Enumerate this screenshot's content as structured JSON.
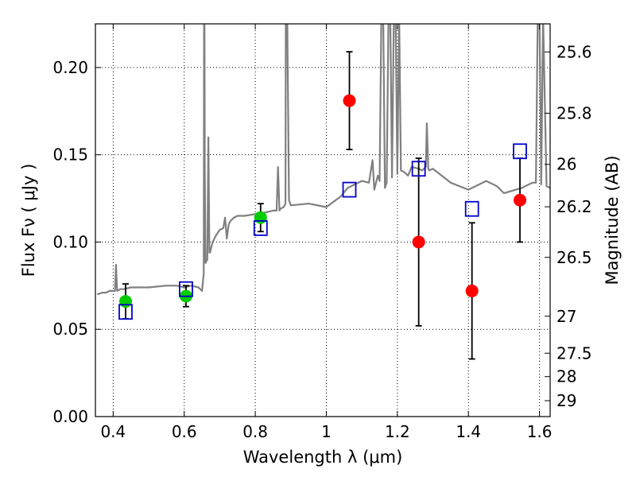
{
  "chart_data": {
    "type": "scatter",
    "xlabel": "Wavelength  λ (μm)",
    "ylabel": "Flux  Fν  ( μJy )",
    "ylabel_right": "Magnitude (AB)",
    "xlim": [
      0.35,
      1.63
    ],
    "ylim": [
      0.0,
      0.225
    ],
    "x_ticks": [
      0.4,
      0.6,
      0.8,
      1.0,
      1.2,
      1.4,
      1.6
    ],
    "x_tick_labels": [
      "0.4",
      "0.6",
      "0.8",
      "1",
      "1.2",
      "1.4",
      "1.6"
    ],
    "y_ticks": [
      0.0,
      0.05,
      0.1,
      0.15,
      0.2
    ],
    "y_tick_labels": [
      "0.00",
      "0.05",
      "0.10",
      "0.15",
      "0.20"
    ],
    "right_ticks": [
      {
        "label": "25.6",
        "flux": 0.2089
      },
      {
        "label": "25.8",
        "flux": 0.1738
      },
      {
        "label": "26",
        "flux": 0.1445
      },
      {
        "label": "26.2",
        "flux": 0.1202
      },
      {
        "label": "26.5",
        "flux": 0.0912
      },
      {
        "label": "27",
        "flux": 0.0575
      },
      {
        "label": "27.5",
        "flux": 0.0363
      },
      {
        "label": "28",
        "flux": 0.0229
      },
      {
        "label": "29",
        "flux": 0.0091
      }
    ],
    "grid": true,
    "series": [
      {
        "kind": "spectrum",
        "color": "#808080",
        "x": [
          0.355,
          0.37,
          0.38,
          0.39,
          0.4,
          0.405,
          0.408,
          0.411,
          0.42,
          0.43,
          0.45,
          0.48,
          0.5,
          0.55,
          0.58,
          0.6,
          0.62,
          0.64,
          0.65,
          0.655,
          0.656,
          0.6565,
          0.657,
          0.658,
          0.66,
          0.665,
          0.668,
          0.671,
          0.673,
          0.675,
          0.68,
          0.69,
          0.7,
          0.71,
          0.715,
          0.72,
          0.725,
          0.73,
          0.74,
          0.75,
          0.77,
          0.8,
          0.83,
          0.85,
          0.86,
          0.864,
          0.868,
          0.87,
          0.88,
          0.885,
          0.886,
          0.888,
          0.89,
          0.895,
          0.9,
          0.95,
          1.0,
          1.02,
          1.04,
          1.06,
          1.08,
          1.1,
          1.12,
          1.13,
          1.135,
          1.14,
          1.145,
          1.15,
          1.155,
          1.16,
          1.165,
          1.17,
          1.175,
          1.18,
          1.185,
          1.19,
          1.195,
          1.2,
          1.205,
          1.21,
          1.22,
          1.23,
          1.24,
          1.26,
          1.27,
          1.28,
          1.283,
          1.287,
          1.29,
          1.3,
          1.35,
          1.4,
          1.45,
          1.48,
          1.5,
          1.55,
          1.58,
          1.59,
          1.595,
          1.6,
          1.605,
          1.61,
          1.62,
          1.63
        ],
        "y": [
          0.07,
          0.071,
          0.071,
          0.072,
          0.072,
          0.072,
          0.087,
          0.072,
          0.073,
          0.073,
          0.074,
          0.074,
          0.074,
          0.075,
          0.075,
          0.074,
          0.075,
          0.074,
          0.072,
          0.082,
          0.23,
          0.23,
          0.23,
          0.14,
          0.088,
          0.09,
          0.16,
          0.094,
          0.094,
          0.096,
          0.1,
          0.104,
          0.107,
          0.108,
          0.114,
          0.102,
          0.11,
          0.112,
          0.114,
          0.115,
          0.115,
          0.116,
          0.117,
          0.118,
          0.118,
          0.143,
          0.118,
          0.119,
          0.12,
          0.122,
          0.23,
          0.23,
          0.23,
          0.124,
          0.121,
          0.122,
          0.12,
          0.123,
          0.126,
          0.131,
          0.133,
          0.135,
          0.134,
          0.147,
          0.13,
          0.134,
          0.138,
          0.135,
          0.23,
          0.23,
          0.131,
          0.134,
          0.23,
          0.23,
          0.137,
          0.23,
          0.23,
          0.139,
          0.23,
          0.141,
          0.14,
          0.138,
          0.143,
          0.142,
          0.141,
          0.143,
          0.168,
          0.142,
          0.141,
          0.142,
          0.134,
          0.13,
          0.135,
          0.132,
          0.128,
          0.131,
          0.134,
          0.134,
          0.23,
          0.23,
          0.133,
          0.23,
          0.132,
          0.131
        ]
      },
      {
        "kind": "points",
        "color": "#00cc00",
        "x": [
          0.435,
          0.605,
          0.815
        ],
        "y": [
          0.066,
          0.069,
          0.114
        ],
        "yerr": [
          0.01,
          0.006,
          0.008
        ]
      },
      {
        "kind": "points",
        "color": "#ff0000",
        "x": [
          1.065,
          1.26,
          1.41,
          1.545
        ],
        "y": [
          0.181,
          0.1,
          0.072,
          0.124
        ],
        "yerr": [
          0.028,
          0.048,
          0.039,
          0.024
        ]
      },
      {
        "kind": "open-squares",
        "color": "#0000cc",
        "x": [
          0.435,
          0.605,
          0.815,
          1.065,
          1.26,
          1.41,
          1.545
        ],
        "y": [
          0.06,
          0.073,
          0.108,
          0.13,
          0.142,
          0.119,
          0.152
        ]
      }
    ]
  }
}
